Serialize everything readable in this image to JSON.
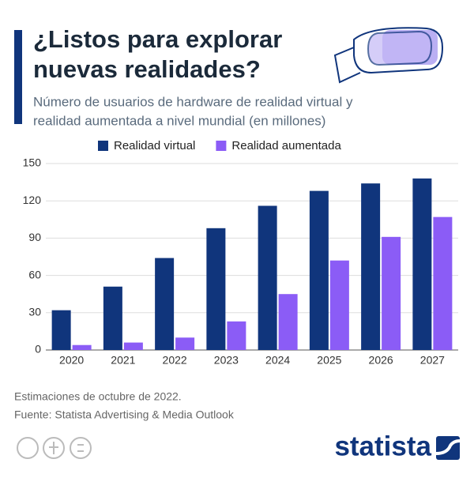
{
  "chart_data": {
    "type": "bar",
    "title_lines": [
      "¿Listos para explorar",
      "nuevas realidades?"
    ],
    "subtitle_lines": [
      "Número de usuarios de hardware de realidad virtual y",
      "realidad aumentada a nivel mundial (en millones)"
    ],
    "categories": [
      "2020",
      "2021",
      "2022",
      "2023",
      "2024",
      "2025",
      "2026",
      "2027"
    ],
    "series": [
      {
        "name": "Realidad virtual",
        "color": "#10357c",
        "values": [
          32,
          51,
          74,
          98,
          116,
          128,
          134,
          138
        ]
      },
      {
        "name": "Realidad aumentada",
        "color": "#8b5cf6",
        "values": [
          4,
          6,
          10,
          23,
          45,
          72,
          91,
          107
        ]
      }
    ],
    "ylim": [
      0,
      150
    ],
    "yticks": [
      0,
      30,
      60,
      90,
      120,
      150
    ],
    "grid": true,
    "legend": "top",
    "notes": [
      "Estimaciones de octubre de 2022.",
      "Fuente: Statista Advertising & Media Outlook"
    ],
    "brand": "statista"
  }
}
